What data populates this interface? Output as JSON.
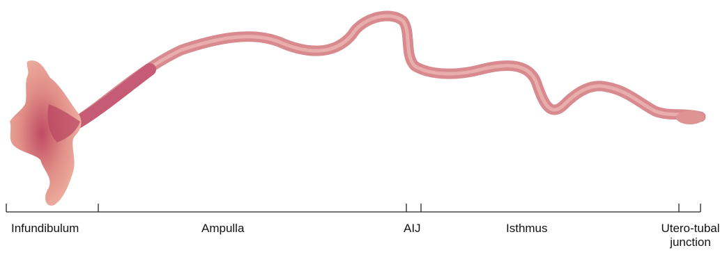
{
  "segments": [
    {
      "id": "infundibulum",
      "label": "Infundibulum"
    },
    {
      "id": "ampulla",
      "label": "Ampulla"
    },
    {
      "id": "aij",
      "label": "AIJ"
    },
    {
      "id": "isthmus",
      "label": "Isthmus"
    },
    {
      "id": "utj",
      "label_line1": "Utero-tubal",
      "label_line2": "junction"
    }
  ],
  "colors": {
    "tissue_light": "#e8a09c",
    "tissue_mid": "#d97f80",
    "tissue_dark": "#b4455f",
    "scale_line": "#222222",
    "background": "#ffffff"
  }
}
